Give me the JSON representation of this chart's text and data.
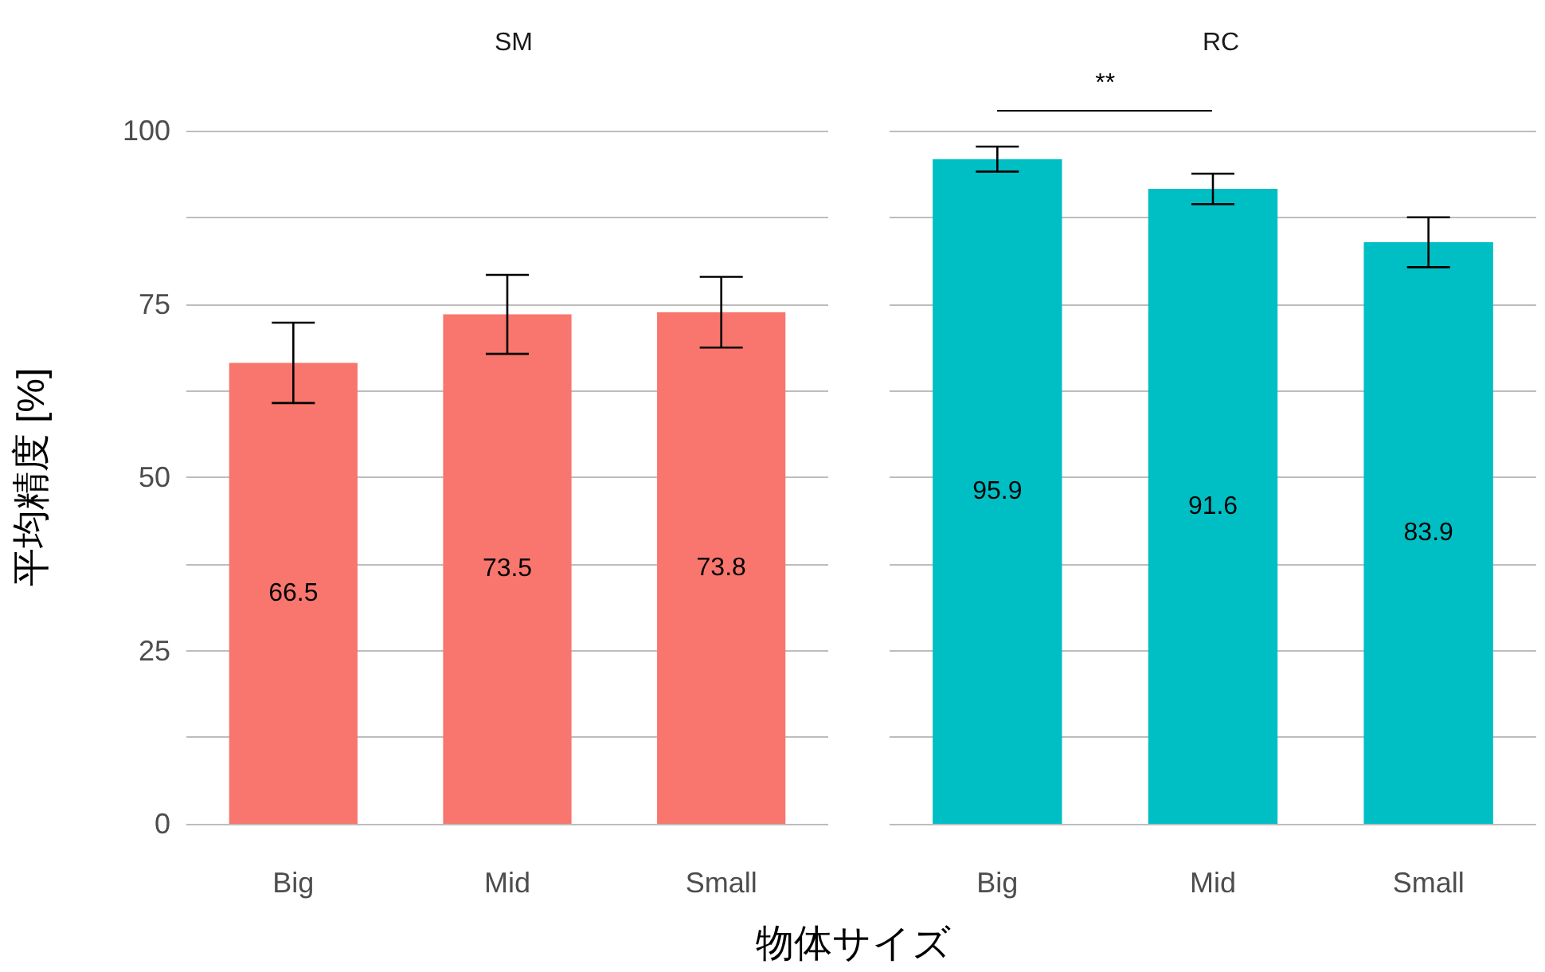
{
  "chart_data": [
    {
      "type": "bar",
      "title": "SM",
      "xlabel": "物体サイズ",
      "ylabel": "平均精度 [%]",
      "categories": [
        "Big",
        "Mid",
        "Small"
      ],
      "values": [
        66.5,
        73.5,
        73.8
      ],
      "color": "#f8766d",
      "errors": [
        5.8,
        5.7,
        5.1
      ],
      "ylim": [
        0,
        100
      ],
      "yticks": [
        0,
        {
          "value": 12.5,
          "label": null
        },
        25,
        {
          "value": 37.5,
          "label": null
        },
        50,
        {
          "value": 62.5,
          "label": null
        },
        75,
        {
          "value": 87.5,
          "label": null
        },
        100
      ],
      "grid": "y",
      "data_labels": true
    },
    {
      "type": "bar",
      "title": "RC",
      "categories": [
        "Big",
        "Mid",
        "Small"
      ],
      "values": [
        95.9,
        91.6,
        83.9
      ],
      "color": "#00bfc4",
      "errors": [
        1.8,
        2.2,
        3.6
      ],
      "ylim": [
        0,
        100
      ],
      "yticks": [
        0,
        {
          "value": 12.5,
          "label": null
        },
        25,
        {
          "value": 37.5,
          "label": null
        },
        50,
        {
          "value": 62.5,
          "label": null
        },
        75,
        {
          "value": 87.5,
          "label": null
        },
        100
      ],
      "grid": "y",
      "tick_labels": "x",
      "data_labels": true,
      "annotations": [
        "**"
      ]
    }
  ]
}
